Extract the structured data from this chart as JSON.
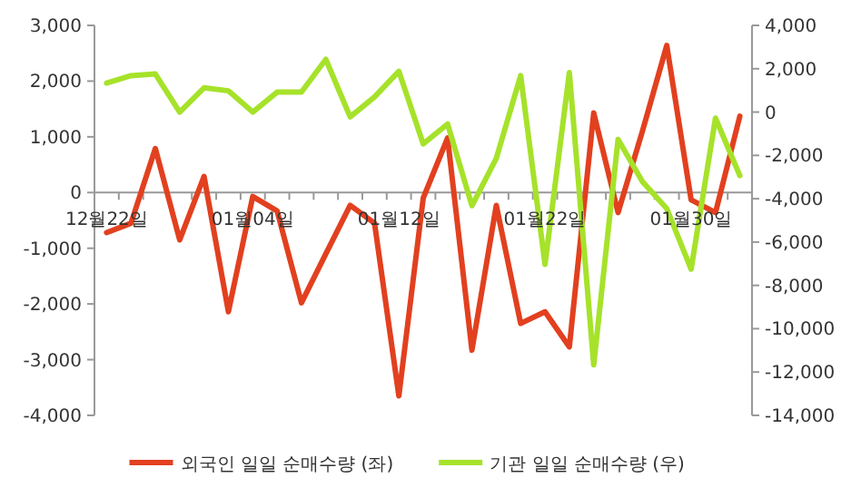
{
  "chart_data": {
    "type": "line",
    "categories": [
      "12월22일",
      null,
      null,
      null,
      null,
      null,
      "01월04일",
      null,
      null,
      null,
      null,
      null,
      "01월12일",
      null,
      null,
      null,
      null,
      null,
      "01월22일",
      null,
      null,
      null,
      null,
      null,
      "01월30일",
      null,
      null
    ],
    "series": [
      {
        "name": "외국인 일일 순매수량 (좌)",
        "color": "#e2401f",
        "values": [
          -720,
          -550,
          790,
          -850,
          290,
          -2140,
          -70,
          -330,
          -1980,
          -1100,
          -230,
          -550,
          -3650,
          -100,
          980,
          -2830,
          -230,
          -2350,
          -2140,
          -2770,
          1430,
          -360,
          1100,
          2640,
          -130,
          -360,
          1370
        ]
      },
      {
        "name": "기관 일일 순매수량 (우)",
        "color": "#a6e22a",
        "axis": "y2",
        "values": [
          1340,
          1680,
          1760,
          0,
          1120,
          980,
          0,
          920,
          920,
          2430,
          -220,
          700,
          1880,
          -1470,
          -550,
          -4320,
          -2140,
          1680,
          -7030,
          1820,
          -11670,
          -1260,
          -3210,
          -4460,
          -7250,
          -280,
          -2930
        ]
      }
    ],
    "ylim": [
      -4000,
      3000
    ],
    "yticks": [
      {
        "value": -4000,
        "label": "-4,000"
      },
      {
        "value": -3000,
        "label": "-3,000"
      },
      {
        "value": -2000,
        "label": "-2,000"
      },
      {
        "value": -1000,
        "label": "-1,000"
      },
      0,
      {
        "value": 1000,
        "label": "1,000"
      },
      {
        "value": 2000,
        "label": "2,000"
      },
      {
        "value": 3000,
        "label": "3,000"
      }
    ],
    "y2lim": [
      -14000,
      4000
    ],
    "y2ticks": [
      {
        "value": -14000,
        "label": "-14,000"
      },
      {
        "value": -12000,
        "label": "-12,000"
      },
      {
        "value": -10000,
        "label": "-10,000"
      },
      {
        "value": -8000,
        "label": "-8,000"
      },
      {
        "value": -6000,
        "label": "-6,000"
      },
      {
        "value": -4000,
        "label": "-4,000"
      },
      {
        "value": -2000,
        "label": "-2,000"
      },
      0,
      {
        "value": 2000,
        "label": "2,000"
      },
      {
        "value": 4000,
        "label": "4,000"
      }
    ],
    "legend": "bottom",
    "grid": false,
    "line_style": "solid"
  }
}
